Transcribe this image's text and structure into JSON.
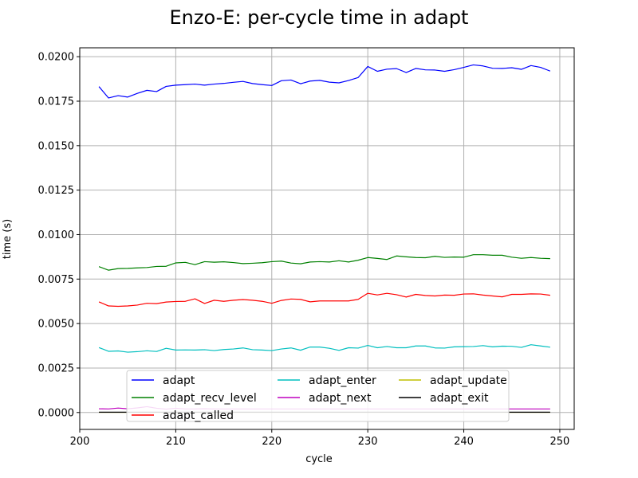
{
  "chart_data": {
    "type": "line",
    "title": "Enzo-E: per-cycle time in adapt",
    "xlabel": "cycle",
    "ylabel": "time (s)",
    "xlim": [
      200,
      251.5
    ],
    "ylim": [
      -0.00095,
      0.0205
    ],
    "x_ticks": [
      200,
      210,
      220,
      230,
      240,
      250
    ],
    "y_ticks": [
      0.0,
      0.0025,
      0.005,
      0.0075,
      0.01,
      0.0125,
      0.015,
      0.0175,
      0.02
    ],
    "x_tick_labels": [
      "200",
      "210",
      "220",
      "230",
      "240",
      "250"
    ],
    "y_tick_labels": [
      "0.0000",
      "0.0025",
      "0.0050",
      "0.0075",
      "0.0100",
      "0.0125",
      "0.0150",
      "0.0175",
      "0.0200"
    ],
    "grid": true,
    "legend_placement": "lower-center",
    "legend_columns": 3,
    "x": [
      202,
      203,
      204,
      205,
      206,
      207,
      208,
      209,
      210,
      211,
      212,
      213,
      214,
      215,
      216,
      217,
      218,
      219,
      220,
      221,
      222,
      223,
      224,
      225,
      226,
      227,
      228,
      229,
      230,
      231,
      232,
      233,
      234,
      235,
      236,
      237,
      238,
      239,
      240,
      241,
      242,
      243,
      244,
      245,
      246,
      247,
      248,
      249
    ],
    "series": [
      {
        "name": "adapt",
        "color": "#0000ff",
        "values": [
          0.01832,
          0.01768,
          0.01781,
          0.01773,
          0.01794,
          0.01811,
          0.01804,
          0.01833,
          0.0184,
          0.01843,
          0.01846,
          0.0184,
          0.01846,
          0.0185,
          0.01856,
          0.01861,
          0.01849,
          0.01843,
          0.01838,
          0.01865,
          0.01869,
          0.01848,
          0.01863,
          0.01867,
          0.01857,
          0.01853,
          0.01866,
          0.01883,
          0.01945,
          0.01918,
          0.0193,
          0.01933,
          0.01911,
          0.01934,
          0.01926,
          0.01925,
          0.01918,
          0.01927,
          0.0194,
          0.01954,
          0.01948,
          0.01935,
          0.01934,
          0.01938,
          0.01929,
          0.0195,
          0.0194,
          0.01919
        ]
      },
      {
        "name": "adapt_recv_level",
        "color": "#008000",
        "values": [
          0.0082,
          0.008,
          0.00809,
          0.0081,
          0.00813,
          0.00815,
          0.00821,
          0.00822,
          0.00841,
          0.00844,
          0.00831,
          0.00848,
          0.00845,
          0.00847,
          0.00843,
          0.00837,
          0.00839,
          0.00842,
          0.00848,
          0.00851,
          0.0084,
          0.00836,
          0.00846,
          0.00848,
          0.00846,
          0.00853,
          0.00846,
          0.00856,
          0.00871,
          0.00866,
          0.0086,
          0.0088,
          0.00875,
          0.00871,
          0.0087,
          0.00878,
          0.00872,
          0.00874,
          0.00873,
          0.00887,
          0.00887,
          0.00884,
          0.00884,
          0.00873,
          0.00867,
          0.00871,
          0.00867,
          0.00865
        ]
      },
      {
        "name": "adapt_called",
        "color": "#ff0000",
        "values": [
          0.00622,
          0.00599,
          0.00597,
          0.00599,
          0.00604,
          0.00614,
          0.00612,
          0.00621,
          0.00624,
          0.00625,
          0.00639,
          0.00613,
          0.00631,
          0.00625,
          0.00631,
          0.00635,
          0.00631,
          0.00625,
          0.00614,
          0.0063,
          0.00638,
          0.00636,
          0.00622,
          0.00627,
          0.00627,
          0.00627,
          0.00627,
          0.00636,
          0.0067,
          0.00661,
          0.0067,
          0.00662,
          0.00649,
          0.00664,
          0.00658,
          0.00655,
          0.0066,
          0.00659,
          0.00666,
          0.00667,
          0.0066,
          0.00655,
          0.0065,
          0.00664,
          0.00664,
          0.00667,
          0.00666,
          0.00659
        ]
      },
      {
        "name": "adapt_enter",
        "color": "#00bfbf",
        "values": [
          0.00365,
          0.00344,
          0.00346,
          0.00339,
          0.00342,
          0.00347,
          0.00343,
          0.00361,
          0.00351,
          0.00352,
          0.00351,
          0.00353,
          0.00348,
          0.00354,
          0.00357,
          0.00363,
          0.00353,
          0.00351,
          0.00348,
          0.00357,
          0.00363,
          0.0035,
          0.00368,
          0.00368,
          0.00361,
          0.00349,
          0.00364,
          0.00362,
          0.00377,
          0.00364,
          0.00371,
          0.00364,
          0.00364,
          0.00374,
          0.00374,
          0.00363,
          0.00362,
          0.00369,
          0.0037,
          0.00371,
          0.00376,
          0.00369,
          0.00373,
          0.00372,
          0.00366,
          0.00381,
          0.00374,
          0.00367
        ]
      },
      {
        "name": "adapt_update",
        "color": "#bfbf00",
        "values": [
          1e-05,
          1e-05,
          1e-05,
          1e-05,
          1e-05,
          1e-05,
          1e-05,
          1e-05,
          1e-05,
          1e-05,
          1e-05,
          1e-05,
          1e-05,
          1e-05,
          1e-05,
          1e-05,
          1e-05,
          1e-05,
          1e-05,
          1e-05,
          1e-05,
          1e-05,
          1e-05,
          1e-05,
          1e-05,
          1e-05,
          1e-05,
          1e-05,
          1e-05,
          1e-05,
          1e-05,
          1e-05,
          1e-05,
          1e-05,
          1e-05,
          1e-05,
          1e-05,
          1e-05,
          1e-05,
          1e-05,
          1e-05,
          1e-05,
          1e-05,
          1e-05,
          1e-05,
          1e-05,
          1e-05,
          1e-05
        ]
      },
      {
        "name": "adapt_next",
        "color": "#bf00bf",
        "values": [
          0.00021,
          0.0002,
          0.00025,
          0.00021,
          0.00026,
          0.00033,
          0.00024,
          0.00019,
          0.00024,
          0.0002,
          0.0002,
          0.00021,
          0.0002,
          0.0002,
          0.0002,
          0.0002,
          0.0002,
          0.0002,
          0.0002,
          0.0002,
          0.0002,
          0.0002,
          0.0002,
          0.0002,
          0.0002,
          0.0002,
          0.0002,
          0.0002,
          0.0002,
          0.0002,
          0.0002,
          0.0002,
          0.0002,
          0.0002,
          0.0002,
          0.0002,
          0.0002,
          0.0002,
          0.0002,
          0.0002,
          0.0002,
          0.0002,
          0.0002,
          0.0002,
          0.0002,
          0.0002,
          0.0002,
          0.0002
        ]
      },
      {
        "name": "adapt_exit",
        "color": "#000000",
        "values": [
          2e-05,
          2e-05,
          2e-05,
          2e-05,
          2e-05,
          2e-05,
          2e-05,
          2e-05,
          2e-05,
          2e-05,
          2e-05,
          2e-05,
          2e-05,
          2e-05,
          2e-05,
          2e-05,
          2e-05,
          2e-05,
          2e-05,
          2e-05,
          2e-05,
          2e-05,
          2e-05,
          2e-05,
          2e-05,
          2e-05,
          2e-05,
          2e-05,
          2e-05,
          2e-05,
          2e-05,
          2e-05,
          2e-05,
          2e-05,
          2e-05,
          2e-05,
          2e-05,
          2e-05,
          2e-05,
          2e-05,
          2e-05,
          2e-05,
          2e-05,
          2e-05,
          2e-05,
          2e-05,
          2e-05,
          2e-05
        ]
      }
    ],
    "legend_order": [
      "adapt",
      "adapt_recv_level",
      "adapt_called",
      "adapt_enter",
      "adapt_next",
      "adapt_update",
      "adapt_exit"
    ]
  }
}
